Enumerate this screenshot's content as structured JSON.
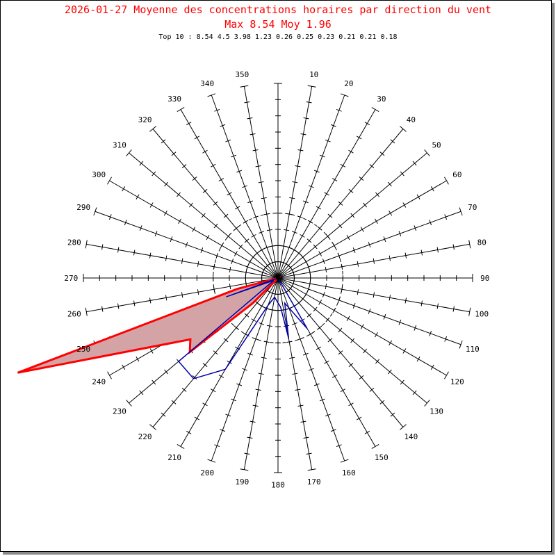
{
  "title_line_1": "2026-01-27 Moyenne des concentrations horaires par direction du vent",
  "title_line_2": "Max 8.54 Moy 1.96",
  "top10_text": "Top 10 : 8.54 4.5 3.98 1.23 0.26 0.25 0.23 0.21 0.21 0.18",
  "chart_data": {
    "type": "polar",
    "directions": [
      10,
      20,
      30,
      40,
      50,
      60,
      70,
      80,
      90,
      100,
      110,
      120,
      130,
      140,
      150,
      160,
      170,
      180,
      190,
      200,
      210,
      220,
      230,
      240,
      250,
      260,
      270,
      280,
      290,
      300,
      310,
      320,
      330,
      340,
      350
    ],
    "rlim": [
      0,
      6
    ],
    "radial_ticks": [
      0.5,
      1,
      1.5,
      2,
      2.5,
      3,
      3.5,
      4,
      4.5,
      5,
      5.5
    ],
    "reference_circles": [
      1,
      2
    ],
    "series": [
      {
        "style": "filled-red",
        "points": [
          {
            "dir": 225,
            "value": 1.1
          },
          {
            "dir": 230,
            "value": 3.55
          },
          {
            "dir": 235,
            "value": 3.3
          },
          {
            "dir": 250,
            "value": 8.54
          },
          {
            "dir": 255,
            "value": 1.3
          },
          {
            "dir": 260,
            "value": 0.0
          }
        ]
      },
      {
        "style": "outline-blue",
        "points": [
          {
            "dir": 100,
            "value": 0.0
          },
          {
            "dir": 150,
            "value": 1.8
          },
          {
            "dir": 165,
            "value": 0.8
          },
          {
            "dir": 170,
            "value": 1.9
          },
          {
            "dir": 175,
            "value": 0.9
          },
          {
            "dir": 190,
            "value": 0.6
          },
          {
            "dir": 200,
            "value": 0.9
          },
          {
            "dir": 210,
            "value": 3.25
          },
          {
            "dir": 220,
            "value": 4.05
          },
          {
            "dir": 230,
            "value": 4.0
          },
          {
            "dir": 240,
            "value": 0.15
          },
          {
            "dir": 250,
            "value": 1.7
          }
        ]
      }
    ],
    "colors": {
      "series_red": "#ff0000",
      "fill_red": "#d4a3a6",
      "series_blue": "#0000aa",
      "title": "#ff0000"
    }
  }
}
